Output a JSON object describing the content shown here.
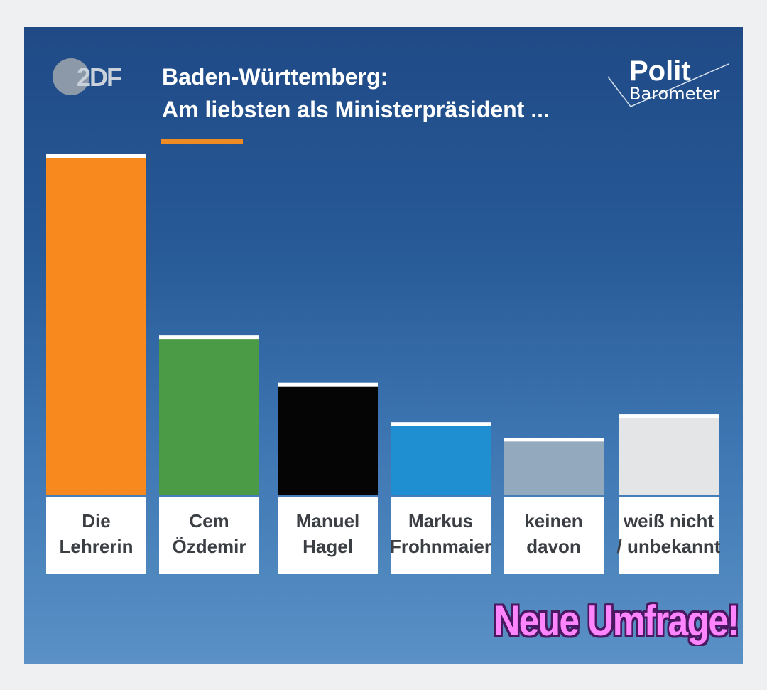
{
  "branding": {
    "zdf_logo": "2DF",
    "pb_polit": "Polit",
    "pb_barometer": "Barometer"
  },
  "colors": {
    "orange": "#f7891e",
    "green": "#4b9a45",
    "black": "#050505",
    "blue": "#1f8fd2",
    "grey": "#93a9bd",
    "lightgrey": "#e3e5e6"
  },
  "chart_data": {
    "type": "bar",
    "title": "Baden-Württemberg:",
    "subtitle": "Am liebsten als Ministerpräsident ...",
    "categories": [
      [
        "Die",
        "Lehrerin"
      ],
      [
        "Cem",
        "Özdemir"
      ],
      [
        "Manuel",
        "Hagel"
      ],
      [
        "Markus",
        "Frohnmaier"
      ],
      [
        "keinen",
        "davon"
      ],
      [
        "weiß nicht",
        "/ unbekannt"
      ]
    ],
    "values": [
      43,
      20,
      14,
      9,
      7,
      10
    ],
    "bar_colors": [
      "#f7891e",
      "#4b9a45",
      "#050505",
      "#1f8fd2",
      "#93a9bd",
      "#e3e5e6"
    ],
    "ylim": [
      0,
      43
    ],
    "grid": false,
    "legend": "none"
  },
  "overlay": {
    "headline": "Neue Umfrage!"
  }
}
